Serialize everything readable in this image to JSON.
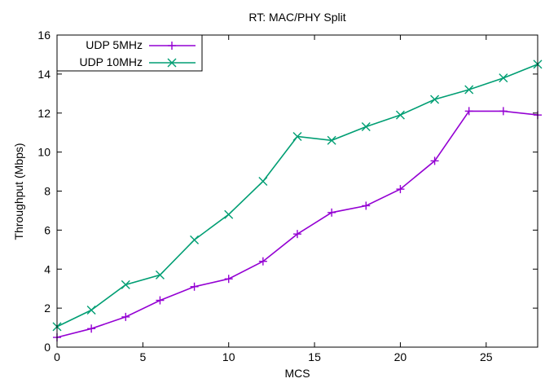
{
  "chart_data": {
    "type": "line",
    "title": "RT: MAC/PHY Split",
    "xlabel": "MCS",
    "ylabel": "Throughput (Mbps)",
    "xlim": [
      0,
      28
    ],
    "ylim": [
      0,
      16
    ],
    "xticks": [
      0,
      5,
      10,
      15,
      20,
      25
    ],
    "yticks": [
      0,
      2,
      4,
      6,
      8,
      10,
      12,
      14,
      16
    ],
    "grid": false,
    "legend": "top-left",
    "series": [
      {
        "name": "UDP 5MHz",
        "color": "#9400d3",
        "marker": "plus",
        "x": [
          0,
          2,
          4,
          6,
          8,
          10,
          12,
          14,
          16,
          18,
          20,
          22,
          24,
          26,
          28
        ],
        "y": [
          0.5,
          0.95,
          1.55,
          2.4,
          3.1,
          3.5,
          4.4,
          5.8,
          6.9,
          7.25,
          8.1,
          9.55,
          12.1,
          12.1,
          11.9
        ]
      },
      {
        "name": "UDP 10MHz",
        "color": "#009e73",
        "marker": "cross",
        "x": [
          0,
          2,
          4,
          6,
          8,
          10,
          12,
          14,
          16,
          18,
          20,
          22,
          24,
          26,
          28
        ],
        "y": [
          1.05,
          1.9,
          3.2,
          3.7,
          5.5,
          6.8,
          8.5,
          10.8,
          10.6,
          11.3,
          11.9,
          12.7,
          13.2,
          13.8,
          14.5
        ]
      }
    ]
  }
}
